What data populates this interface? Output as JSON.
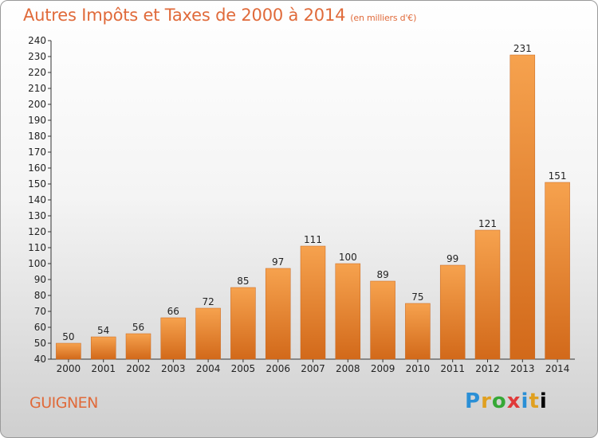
{
  "chart_data": {
    "type": "bar",
    "title": "Autres Impôts et Taxes de 2000 à 2014",
    "subtitle": "(en milliers d'€)",
    "categories": [
      "2000",
      "2001",
      "2002",
      "2003",
      "2004",
      "2005",
      "2006",
      "2007",
      "2008",
      "2009",
      "2010",
      "2011",
      "2012",
      "2013",
      "2014"
    ],
    "values": [
      50,
      54,
      56,
      66,
      72,
      85,
      97,
      111,
      100,
      89,
      75,
      99,
      121,
      231,
      151
    ],
    "ylim": [
      40,
      240
    ],
    "yticks": [
      40,
      50,
      60,
      70,
      80,
      90,
      100,
      110,
      120,
      130,
      140,
      150,
      160,
      170,
      180,
      190,
      200,
      210,
      220,
      230,
      240
    ],
    "grid": false,
    "bar_color": "#f0913a"
  },
  "commune": "GUIGNEN",
  "logo": [
    "P",
    "r",
    "o",
    "x",
    "i",
    "t",
    "i"
  ]
}
